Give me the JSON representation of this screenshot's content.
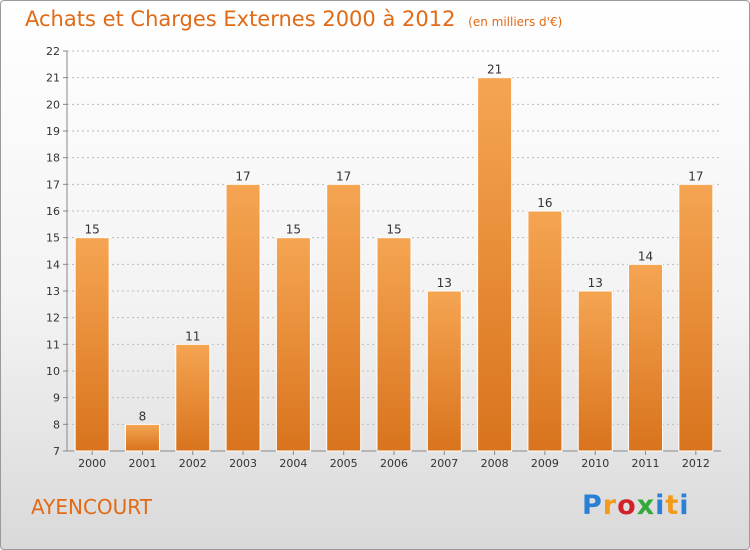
{
  "header": {
    "title": "Achats et Charges Externes 2000 à 2012",
    "subtitle": "(en milliers d'€)"
  },
  "footer": {
    "location": "AYENCOURT",
    "logo_text": "Proxiti"
  },
  "colors": {
    "title": "#e06a16",
    "bar_light": "#f5a552",
    "bar_dark": "#d9731d",
    "axis": "#888888",
    "grid": "#bbbbbb"
  },
  "chart_data": {
    "type": "bar",
    "categories": [
      "2000",
      "2001",
      "2002",
      "2003",
      "2004",
      "2005",
      "2006",
      "2007",
      "2008",
      "2009",
      "2010",
      "2011",
      "2012"
    ],
    "values": [
      15,
      8,
      11,
      17,
      15,
      17,
      15,
      13,
      21,
      16,
      13,
      14,
      17
    ],
    "data_labels": [
      "15",
      "8",
      "11",
      "17",
      "15",
      "17",
      "15",
      "13",
      "21",
      "16",
      "13",
      "14",
      "17"
    ],
    "yticks": [
      "7",
      "8",
      "9",
      "10",
      "11",
      "12",
      "13",
      "14",
      "15",
      "16",
      "17",
      "18",
      "19",
      "20",
      "21",
      "22"
    ],
    "ylim": [
      7,
      22
    ],
    "grid": true,
    "legend": "none"
  }
}
